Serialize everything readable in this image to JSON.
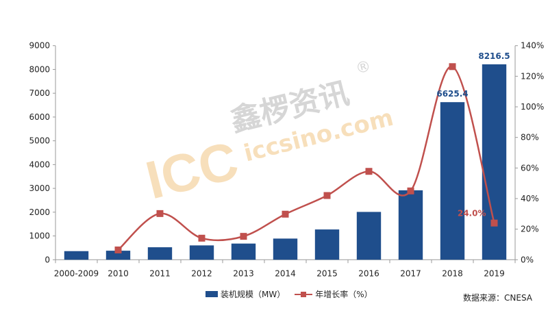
{
  "chart_data": {
    "type": "bar+line",
    "categories": [
      "2000-2009",
      "2010",
      "2011",
      "2012",
      "2013",
      "2014",
      "2015",
      "2016",
      "2017",
      "2018",
      "2019"
    ],
    "series": [
      {
        "name": "装机规模（MW）",
        "type": "bar",
        "axis": "left",
        "color": "#1f4e8c",
        "values": [
          362,
          380,
          525,
          603,
          680,
          890,
          1273,
          2011,
          2920,
          6625.4,
          8216.5
        ]
      },
      {
        "name": "年增长率（%）",
        "type": "line",
        "axis": "right",
        "color": "#c0504d",
        "smooth": true,
        "values": [
          null,
          6.4,
          30.2,
          14.1,
          15.3,
          29.8,
          42.0,
          57.8,
          45.0,
          126.3,
          24.0
        ]
      }
    ],
    "data_labels": [
      {
        "category": "2018",
        "series": "bar",
        "text": "6625.4",
        "color": "#1f4e8c"
      },
      {
        "category": "2019",
        "series": "bar",
        "text": "8216.5",
        "color": "#1f4e8c"
      },
      {
        "category": "2019",
        "series": "line",
        "text": "24.0%",
        "color": "#c0504d"
      }
    ],
    "ylim_left": [
      0,
      9000
    ],
    "yticks_left": [
      "0",
      "1000",
      "2000",
      "3000",
      "4000",
      "5000",
      "6000",
      "7000",
      "8000",
      "9000"
    ],
    "ylim_right": [
      0,
      140
    ],
    "yticks_right": [
      "0%",
      "20%",
      "40%",
      "60%",
      "80%",
      "100%",
      "120%",
      "140%"
    ],
    "grid": false,
    "legend_position": "bottom",
    "source": "数据来源：CNESA"
  },
  "watermark": {
    "logo": "ICC",
    "name": "鑫椤资讯",
    "url": "iccsino.com",
    "mark": "®"
  }
}
